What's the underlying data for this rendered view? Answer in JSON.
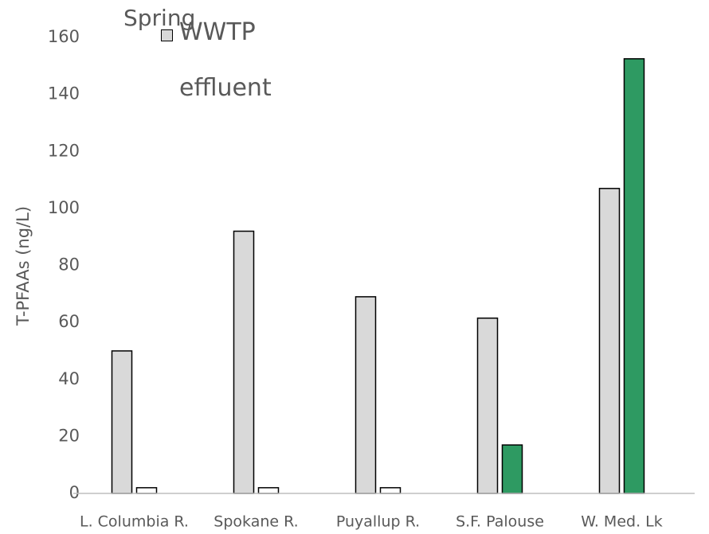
{
  "chart_data": {
    "type": "bar",
    "title": "Spring",
    "y_label": "T-PFAAs (ng/L)",
    "categories": [
      "L. Columbia R.",
      "Spokane R.",
      "Puyallup R.",
      "S.F. Palouse",
      "W. Med. Lk"
    ],
    "series": [
      {
        "name": "WWTP effluent",
        "color": "#d9d9d9",
        "values": [
          50,
          92,
          69,
          61.5,
          107
        ]
      },
      {
        "colors": [
          "#ffffff",
          "#ffffff",
          "#ffffff",
          "#2e9a62",
          "#2e9a62"
        ],
        "values": [
          2,
          2,
          2,
          17,
          152.5
        ]
      }
    ],
    "ylim": [
      0,
      160
    ],
    "yticks": [
      0,
      20,
      40,
      60,
      80,
      100,
      120,
      140,
      160
    ],
    "grid": false
  }
}
